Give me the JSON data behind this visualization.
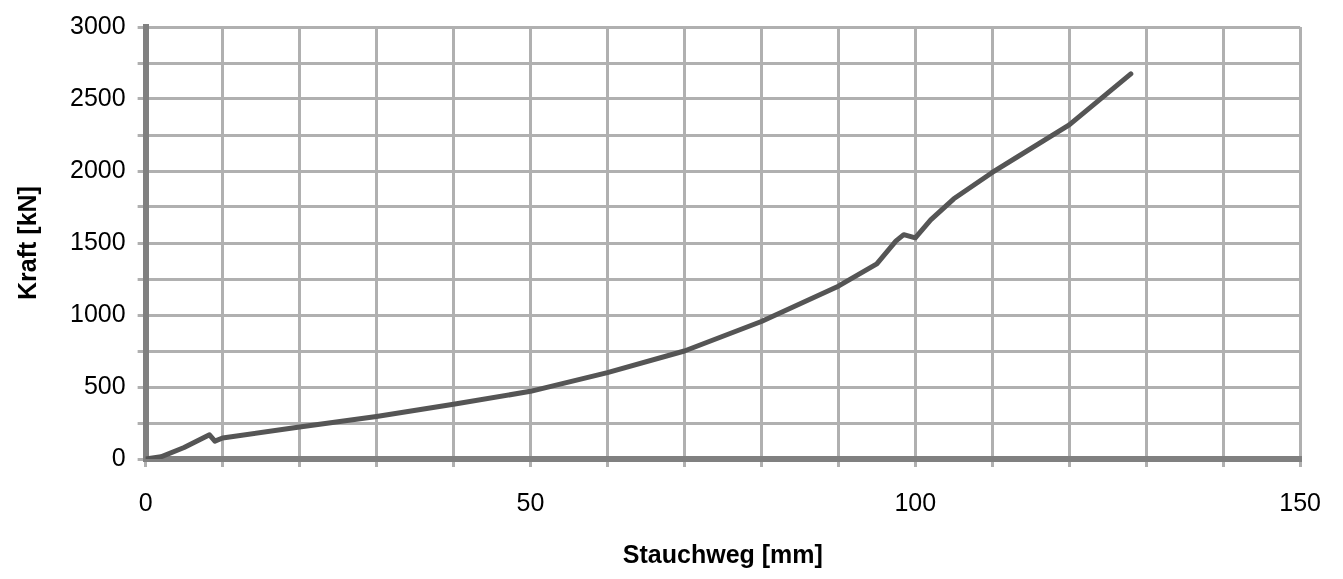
{
  "chart_data": {
    "type": "line",
    "xlabel": "Stauchweg [mm]",
    "ylabel": "Kraft [kN]",
    "xlim": [
      0,
      150
    ],
    "ylim": [
      0,
      3000
    ],
    "xticks": [
      0,
      {
        "value": 10,
        "label": null
      },
      {
        "value": 20,
        "label": null
      },
      {
        "value": 30,
        "label": null
      },
      {
        "value": 40,
        "label": null
      },
      50,
      {
        "value": 60,
        "label": null
      },
      {
        "value": 70,
        "label": null
      },
      {
        "value": 80,
        "label": null
      },
      {
        "value": 90,
        "label": null
      },
      100,
      {
        "value": 110,
        "label": null
      },
      {
        "value": 120,
        "label": null
      },
      {
        "value": 130,
        "label": null
      },
      {
        "value": 140,
        "label": null
      },
      150
    ],
    "yticks": [
      0,
      {
        "value": 250,
        "label": null
      },
      500,
      {
        "value": 750,
        "label": null
      },
      1000,
      {
        "value": 1250,
        "label": null
      },
      1500,
      {
        "value": 1750,
        "label": null
      },
      2000,
      {
        "value": 2250,
        "label": null
      },
      2500,
      {
        "value": 2750,
        "label": null
      },
      3000
    ],
    "grid": true,
    "legend": false,
    "marker": "none",
    "line_style": "solid",
    "series": [
      {
        "color": "#555555",
        "x": [
          0,
          2,
          5,
          8.3,
          9,
          10,
          20,
          30,
          40,
          50,
          60,
          70,
          80,
          90,
          95,
          97.5,
          98.5,
          100,
          102,
          105,
          110,
          120,
          128
        ],
        "values": [
          0,
          15,
          80,
          168,
          124,
          146,
          222,
          295,
          380,
          470,
          600,
          750,
          955,
          1200,
          1355,
          1515,
          1558,
          1536,
          1660,
          1807,
          1990,
          2320,
          2675
        ]
      }
    ]
  }
}
